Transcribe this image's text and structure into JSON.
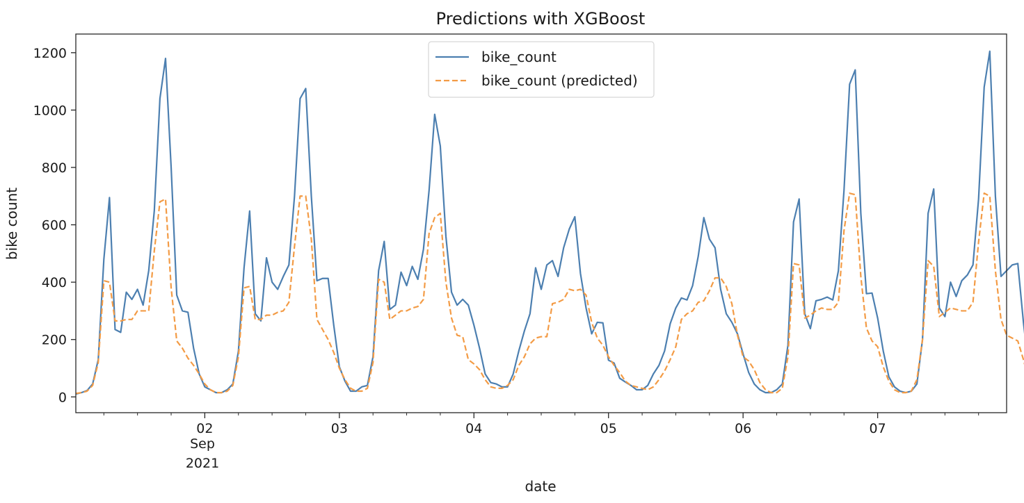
{
  "chart_data": {
    "type": "line",
    "title": "Predictions with XGBoost",
    "xlabel": "date",
    "ylabel": "bike count",
    "x_start": "2021-09-01 01:00",
    "x_step": "1H",
    "xlim": [
      "2021-09-01 01:00",
      "2021-09-07 23:00"
    ],
    "ylim": [
      -55,
      1265
    ],
    "y_ticks": [
      0,
      200,
      400,
      600,
      800,
      1000,
      1200
    ],
    "x_ticks": [
      {
        "label": "02",
        "date": "2021-09-02 00:00"
      },
      {
        "label": "03",
        "date": "2021-09-03 00:00"
      },
      {
        "label": "04",
        "date": "2021-09-04 00:00"
      },
      {
        "label": "05",
        "date": "2021-09-05 00:00"
      },
      {
        "label": "06",
        "date": "2021-09-06 00:00"
      },
      {
        "label": "07",
        "date": "2021-09-07 00:00"
      }
    ],
    "x_secondary_label": {
      "month": "Sep",
      "year": "2021"
    },
    "grid": false,
    "legend_position": "upper center",
    "series": [
      {
        "name": "bike_count",
        "color": "#4c7fb0",
        "style": "solid",
        "values": [
          10,
          15,
          22,
          45,
          130,
          480,
          695,
          235,
          225,
          365,
          340,
          375,
          320,
          440,
          650,
          1040,
          1180,
          800,
          355,
          300,
          295,
          170,
          80,
          35,
          25,
          15,
          15,
          25,
          45,
          160,
          450,
          648,
          290,
          265,
          485,
          400,
          375,
          420,
          460,
          700,
          1040,
          1075,
          700,
          405,
          413,
          413,
          250,
          105,
          55,
          20,
          20,
          35,
          40,
          140,
          440,
          542,
          305,
          320,
          435,
          388,
          455,
          410,
          515,
          720,
          985,
          875,
          560,
          365,
          320,
          340,
          320,
          250,
          170,
          80,
          50,
          45,
          35,
          35,
          80,
          160,
          230,
          290,
          450,
          375,
          460,
          475,
          420,
          520,
          585,
          628,
          430,
          310,
          220,
          260,
          258,
          128,
          118,
          65,
          52,
          40,
          25,
          25,
          40,
          80,
          110,
          160,
          255,
          310,
          345,
          338,
          388,
          490,
          625,
          550,
          520,
          375,
          290,
          260,
          220,
          150,
          85,
          45,
          25,
          15,
          15,
          25,
          45,
          180,
          610,
          690,
          290,
          238,
          335,
          340,
          348,
          338,
          440,
          720,
          1090,
          1140,
          640,
          360,
          362,
          275,
          160,
          70,
          35,
          20,
          15,
          20,
          45,
          200,
          640,
          725,
          310,
          280,
          400,
          350,
          405,
          425,
          460,
          690,
          1080,
          1205,
          700,
          420,
          440,
          460,
          465,
          260,
          90
        ]
      },
      {
        "name": "bike_count (predicted)",
        "color": "#f39b45",
        "style": "dashed",
        "values": [
          12,
          15,
          20,
          40,
          120,
          405,
          400,
          265,
          265,
          270,
          270,
          300,
          300,
          300,
          510,
          680,
          690,
          380,
          195,
          170,
          135,
          110,
          80,
          45,
          25,
          15,
          15,
          20,
          40,
          140,
          380,
          385,
          270,
          270,
          285,
          285,
          295,
          300,
          330,
          525,
          700,
          700,
          550,
          270,
          235,
          200,
          155,
          100,
          60,
          30,
          20,
          20,
          30,
          120,
          410,
          400,
          270,
          285,
          300,
          300,
          310,
          315,
          340,
          570,
          625,
          640,
          400,
          275,
          215,
          210,
          130,
          115,
          95,
          60,
          35,
          30,
          30,
          40,
          60,
          110,
          140,
          185,
          205,
          210,
          210,
          325,
          330,
          340,
          375,
          370,
          375,
          355,
          260,
          205,
          180,
          140,
          110,
          85,
          55,
          40,
          35,
          30,
          25,
          35,
          60,
          90,
          130,
          175,
          270,
          290,
          300,
          330,
          335,
          370,
          415,
          415,
          385,
          325,
          215,
          140,
          125,
          95,
          50,
          25,
          15,
          15,
          30,
          140,
          465,
          460,
          275,
          285,
          300,
          310,
          305,
          305,
          330,
          580,
          710,
          705,
          420,
          240,
          195,
          175,
          105,
          55,
          25,
          15,
          15,
          20,
          60,
          200,
          475,
          455,
          280,
          295,
          310,
          305,
          300,
          300,
          330,
          540,
          710,
          700,
          440,
          270,
          215,
          205,
          195,
          130,
          55
        ]
      }
    ]
  }
}
